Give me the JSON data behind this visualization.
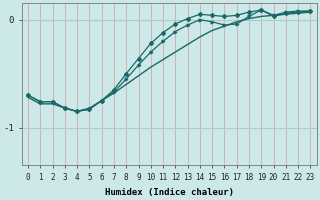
{
  "xlabel": "Humidex (Indice chaleur)",
  "bg_color": "#cce8e8",
  "vgrid_color": "#d4a8a8",
  "hgrid_color": "#aacccc",
  "line_color": "#1a6868",
  "xlim": [
    -0.5,
    23.5
  ],
  "ylim": [
    -1.35,
    0.15
  ],
  "yticks": [
    0,
    -1
  ],
  "ytick_labels": [
    "0",
    "-1"
  ],
  "xticks": [
    0,
    1,
    2,
    3,
    4,
    5,
    6,
    7,
    8,
    9,
    10,
    11,
    12,
    13,
    14,
    15,
    16,
    17,
    18,
    19,
    20,
    21,
    22,
    23
  ],
  "series1_x": [
    0,
    1,
    2,
    3,
    4,
    5,
    6,
    7,
    8,
    9,
    10,
    11,
    12,
    13,
    14,
    15,
    16,
    17,
    18,
    19,
    20,
    21,
    22,
    23
  ],
  "series1_y": [
    -0.72,
    -0.78,
    -0.78,
    -0.82,
    -0.85,
    -0.82,
    -0.75,
    -0.68,
    -0.6,
    -0.52,
    -0.44,
    -0.37,
    -0.3,
    -0.23,
    -0.16,
    -0.1,
    -0.06,
    -0.02,
    0.01,
    0.03,
    0.04,
    0.05,
    0.06,
    0.07
  ],
  "series2_x": [
    0,
    1,
    2,
    3,
    4,
    5,
    6,
    7,
    8,
    9,
    10,
    11,
    12,
    13,
    14,
    15,
    16,
    17,
    18,
    19,
    20,
    21,
    22,
    23
  ],
  "series2_y": [
    -0.7,
    -0.76,
    -0.76,
    -0.82,
    -0.85,
    -0.83,
    -0.75,
    -0.65,
    -0.5,
    -0.36,
    -0.22,
    -0.12,
    -0.04,
    0.01,
    0.05,
    0.04,
    0.03,
    0.04,
    0.07,
    0.09,
    0.03,
    0.06,
    0.07,
    0.08
  ],
  "series3_x": [
    0,
    1,
    2,
    3,
    4,
    5,
    6,
    7,
    8,
    9,
    10,
    11,
    12,
    13,
    14,
    15,
    16,
    17,
    18,
    19,
    20,
    21,
    22,
    23
  ],
  "series3_y": [
    -0.7,
    -0.76,
    -0.76,
    -0.82,
    -0.85,
    -0.83,
    -0.75,
    -0.67,
    -0.55,
    -0.42,
    -0.3,
    -0.2,
    -0.11,
    -0.05,
    0.0,
    -0.02,
    -0.05,
    -0.04,
    0.03,
    0.09,
    0.04,
    0.07,
    0.08,
    0.08
  ],
  "tick_fontsize": 5.5,
  "xlabel_fontsize": 6.5
}
